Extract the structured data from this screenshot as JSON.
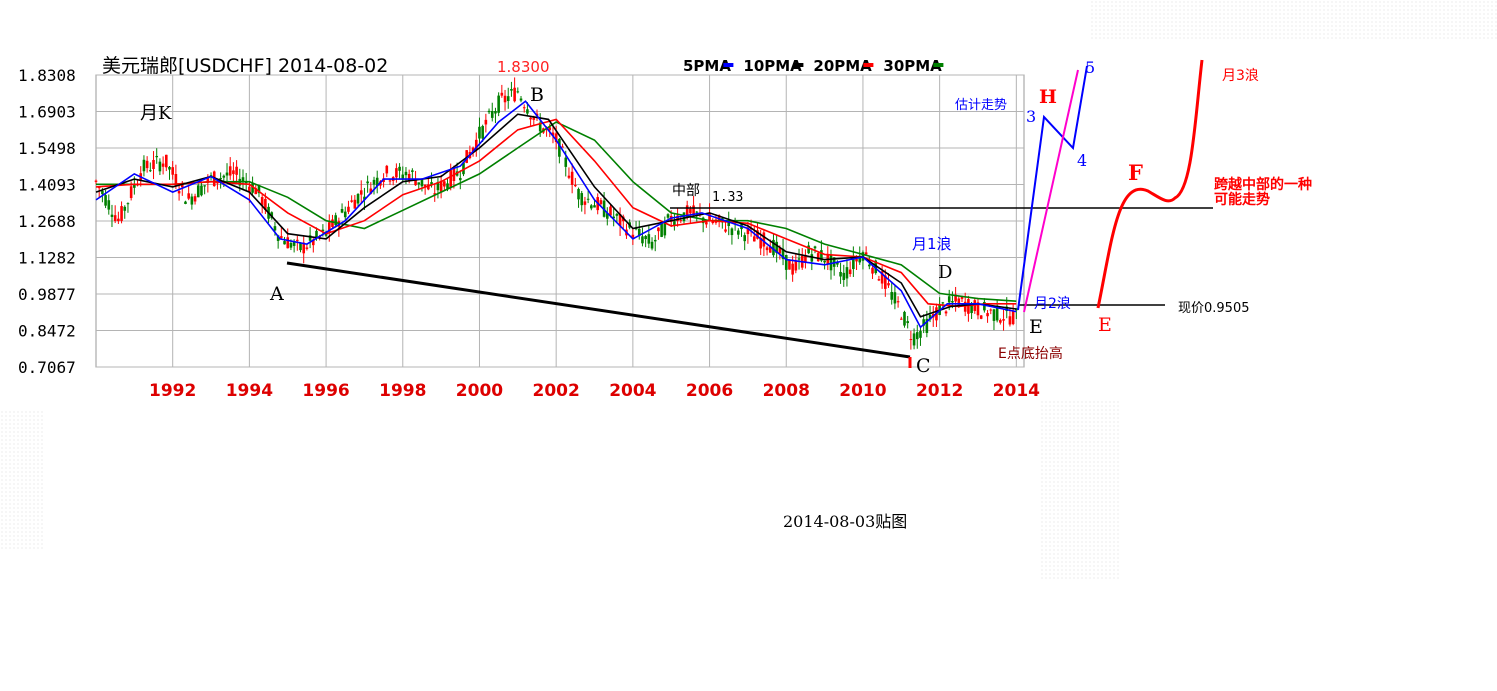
{
  "header": {
    "title": "美元瑞郎[USDCHF] 2014-08-02",
    "period_label": "月K",
    "high_value": "1.8300"
  },
  "legend": [
    {
      "label": "5PMA",
      "color": "#0000ff"
    },
    {
      "label": "10PMA",
      "color": "#000000"
    },
    {
      "label": "20PMA",
      "color": "#ff0000"
    },
    {
      "label": "30PMA",
      "color": "#008000"
    }
  ],
  "annotations": {
    "A": "A",
    "B": "B",
    "C": "C",
    "D": "D",
    "E": "E",
    "E_red": "E",
    "F": "F",
    "H": "H",
    "mid": "中部",
    "mid_value": "1.33",
    "month1": "月1浪",
    "month2": "月2浪",
    "month3": "月3浪",
    "estimate": "估计走势",
    "cross1": "跨越中部的一种",
    "cross2": "可能走势",
    "current": "现价0.9505",
    "e_raise": "E点底抬高",
    "w3": "3",
    "w4": "4",
    "w5": "5"
  },
  "footer": {
    "date_note": "2014-08-03贴图"
  },
  "chart_data": {
    "type": "line",
    "title": "美元瑞郎[USDCHF] 2014-08-02",
    "subtitle": "月K",
    "y_ticks": [
      "1.8308",
      "1.6903",
      "1.5498",
      "1.4093",
      "1.2688",
      "1.1282",
      "0.9877",
      "0.8472",
      "0.7067"
    ],
    "ylim": [
      0.7067,
      1.8308
    ],
    "x_ticks": [
      "1992",
      "1994",
      "1996",
      "1998",
      "2000",
      "2002",
      "2004",
      "2006",
      "2008",
      "2010",
      "2012",
      "2014"
    ],
    "xlim": [
      1990.0,
      2014.2
    ],
    "grid": true,
    "legend_position": "top-right",
    "price": {
      "x": [
        1990.0,
        1990.6,
        1991.2,
        1991.8,
        1992.4,
        1993.0,
        1993.6,
        1994.2,
        1994.8,
        1995.3,
        1996.0,
        1996.8,
        1997.5,
        1998.2,
        1998.8,
        1999.5,
        2000.0,
        2000.5,
        2001.0,
        2001.5,
        2002.0,
        2002.6,
        2003.2,
        2003.8,
        2004.5,
        2005.0,
        2005.5,
        2006.0,
        2006.5,
        2007.0,
        2007.6,
        2008.2,
        2008.6,
        2009.0,
        2009.5,
        2010.0,
        2010.5,
        2011.0,
        2011.3,
        2011.6,
        2012.0,
        2012.5,
        2013.0,
        2013.5,
        2014.0
      ],
      "y": [
        1.42,
        1.27,
        1.47,
        1.5,
        1.35,
        1.43,
        1.45,
        1.39,
        1.21,
        1.16,
        1.22,
        1.36,
        1.45,
        1.45,
        1.38,
        1.46,
        1.6,
        1.72,
        1.77,
        1.65,
        1.58,
        1.37,
        1.32,
        1.25,
        1.18,
        1.28,
        1.3,
        1.27,
        1.25,
        1.22,
        1.18,
        1.08,
        1.15,
        1.13,
        1.06,
        1.15,
        1.05,
        0.92,
        0.82,
        0.86,
        0.93,
        0.96,
        0.93,
        0.91,
        0.9
      ]
    },
    "series": [
      {
        "name": "5PMA",
        "color": "#0000ff",
        "x": [
          1990.0,
          1991.0,
          1992.0,
          1993.0,
          1994.0,
          1994.8,
          1995.5,
          1996.5,
          1997.5,
          1998.5,
          1999.5,
          2000.5,
          2001.2,
          2002.0,
          2003.0,
          2004.0,
          2005.0,
          2005.8,
          2007.0,
          2008.0,
          2009.0,
          2010.0,
          2011.0,
          2011.5,
          2012.2,
          2013.0,
          2014.0
        ],
        "y": [
          1.35,
          1.45,
          1.38,
          1.44,
          1.35,
          1.2,
          1.18,
          1.27,
          1.43,
          1.43,
          1.48,
          1.65,
          1.73,
          1.58,
          1.35,
          1.2,
          1.28,
          1.3,
          1.24,
          1.12,
          1.1,
          1.13,
          1.0,
          0.86,
          0.95,
          0.95,
          0.92
        ]
      },
      {
        "name": "10PMA",
        "color": "#000000",
        "x": [
          1990.0,
          1991.0,
          1992.0,
          1993.0,
          1994.0,
          1995.0,
          1996.0,
          1997.0,
          1998.0,
          1999.0,
          2000.0,
          2001.0,
          2001.8,
          2003.0,
          2004.0,
          2005.0,
          2006.0,
          2007.0,
          2008.0,
          2009.0,
          2010.0,
          2011.0,
          2011.5,
          2012.3,
          2013.0,
          2014.0
        ],
        "y": [
          1.38,
          1.43,
          1.4,
          1.44,
          1.38,
          1.22,
          1.2,
          1.32,
          1.42,
          1.44,
          1.55,
          1.68,
          1.66,
          1.4,
          1.24,
          1.27,
          1.3,
          1.25,
          1.15,
          1.12,
          1.13,
          1.03,
          0.9,
          0.94,
          0.95,
          0.93
        ]
      },
      {
        "name": "20PMA",
        "color": "#ff0000",
        "x": [
          1990.0,
          1991.0,
          1992.0,
          1993.0,
          1994.0,
          1995.0,
          1996.0,
          1997.0,
          1998.0,
          1999.0,
          2000.0,
          2001.0,
          2002.0,
          2003.0,
          2004.0,
          2005.0,
          2006.0,
          2007.0,
          2008.0,
          2009.0,
          2010.0,
          2011.0,
          2011.7,
          2012.5,
          2013.2,
          2014.0
        ],
        "y": [
          1.4,
          1.41,
          1.41,
          1.42,
          1.41,
          1.3,
          1.22,
          1.27,
          1.37,
          1.42,
          1.5,
          1.62,
          1.66,
          1.5,
          1.32,
          1.25,
          1.27,
          1.26,
          1.2,
          1.14,
          1.13,
          1.07,
          0.95,
          0.94,
          0.95,
          0.95
        ]
      },
      {
        "name": "30PMA",
        "color": "#008000",
        "x": [
          1990.0,
          1991.0,
          1992.0,
          1993.0,
          1994.0,
          1995.0,
          1996.0,
          1997.0,
          1998.0,
          1999.0,
          2000.0,
          2001.0,
          2002.0,
          2003.0,
          2004.0,
          2005.0,
          2006.0,
          2007.0,
          2008.0,
          2009.0,
          2010.0,
          2011.0,
          2012.0,
          2013.0,
          2014.0
        ],
        "y": [
          1.41,
          1.41,
          1.41,
          1.42,
          1.42,
          1.36,
          1.27,
          1.24,
          1.31,
          1.38,
          1.45,
          1.55,
          1.65,
          1.58,
          1.42,
          1.3,
          1.27,
          1.27,
          1.24,
          1.18,
          1.14,
          1.1,
          0.99,
          0.97,
          0.96
        ]
      }
    ]
  }
}
